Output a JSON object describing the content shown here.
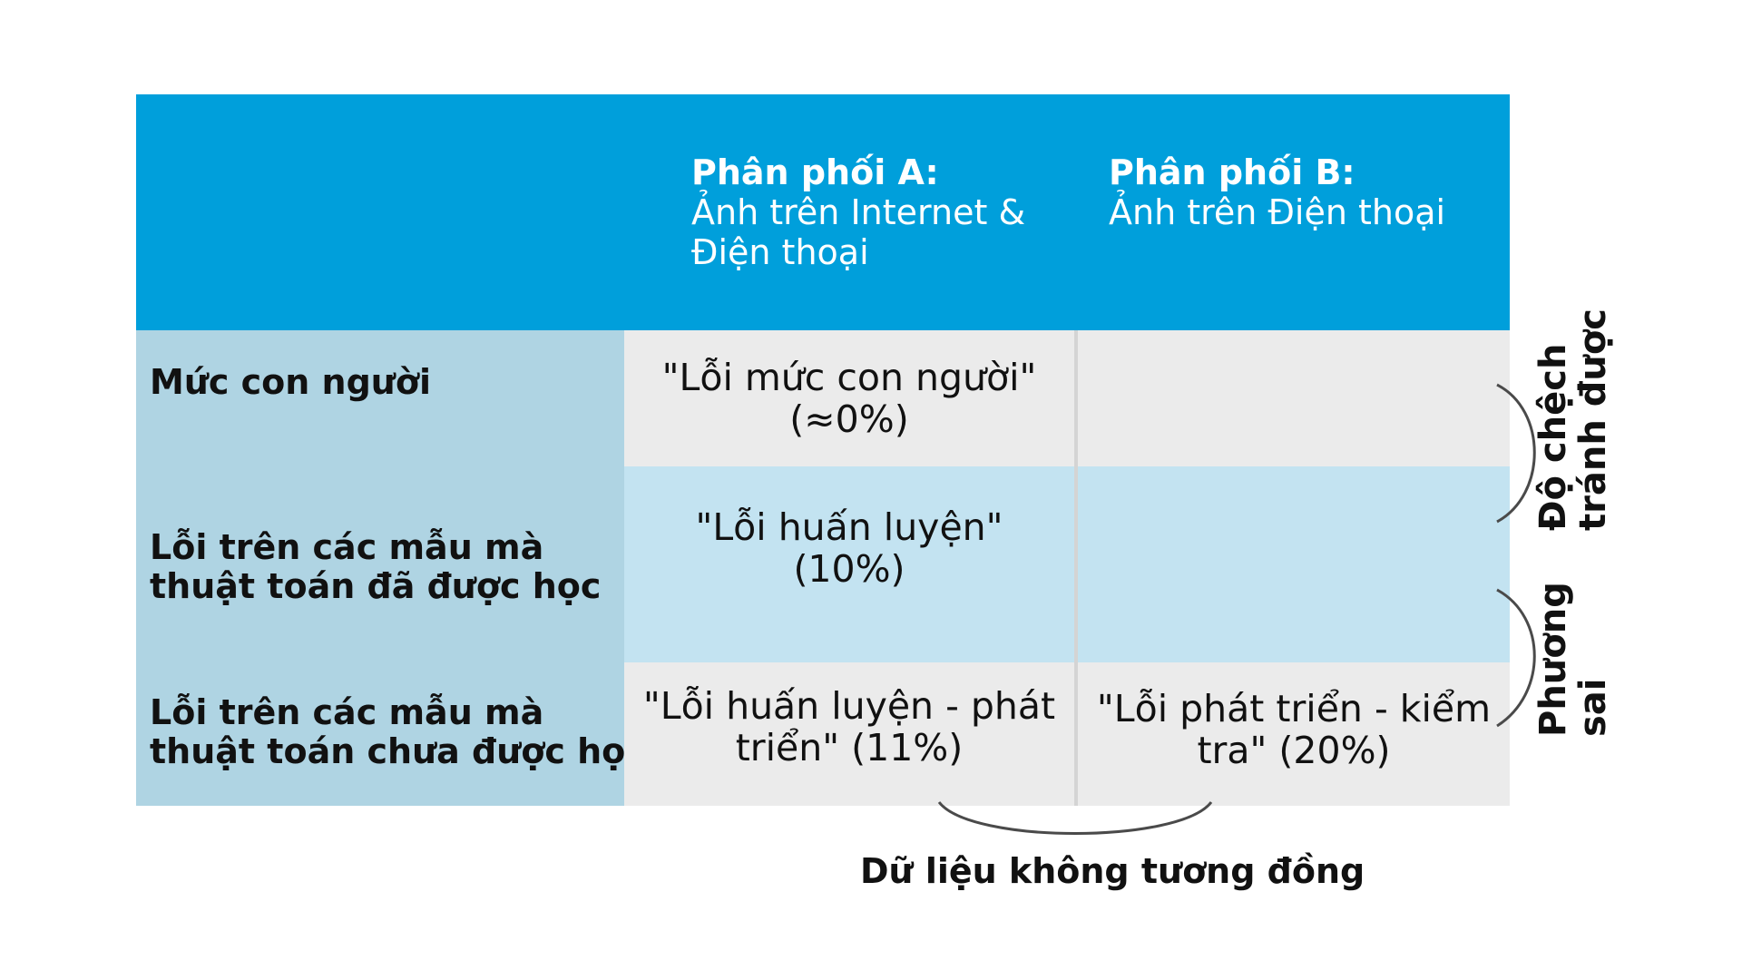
{
  "header": {
    "col_a": {
      "title": "Phân phối A:",
      "subtitle_line1": "Ảnh trên Internet &",
      "subtitle_line2": "Điện thoại"
    },
    "col_b": {
      "title": "Phân phối B:",
      "subtitle_line1": "Ảnh trên Điện thoại"
    }
  },
  "rows": [
    {
      "label_lines": [
        "Mức con người"
      ],
      "cell_a_lines": [
        "\"Lỗi mức con người\"",
        "(≈0%)"
      ],
      "cell_b_lines": []
    },
    {
      "label_lines": [
        "Lỗi trên các mẫu mà",
        "thuật toán đã được học"
      ],
      "cell_a_lines": [
        "\"Lỗi huấn luyện\"",
        "(10%)"
      ],
      "cell_b_lines": []
    },
    {
      "label_lines": [
        "Lỗi trên các mẫu mà",
        "thuật toán chưa được học"
      ],
      "cell_a_lines": [
        "\"Lỗi huấn luyện - phát",
        "triển\" (11%)"
      ],
      "cell_b_lines": [
        "\"Lỗi phát triển - kiểm",
        "tra\" (20%)"
      ]
    }
  ],
  "annotations": {
    "avoidable_bias": [
      "Độ chệch",
      "tránh được"
    ],
    "variance": [
      "Phương",
      "sai"
    ],
    "data_mismatch": "Dữ liệu không tương đồng"
  },
  "colors": {
    "header_bg": "#009fdb",
    "label_col_bg": "#afd4e3",
    "cell_gray": "#ebebeb",
    "cell_light_blue": "#c3e3f1"
  }
}
